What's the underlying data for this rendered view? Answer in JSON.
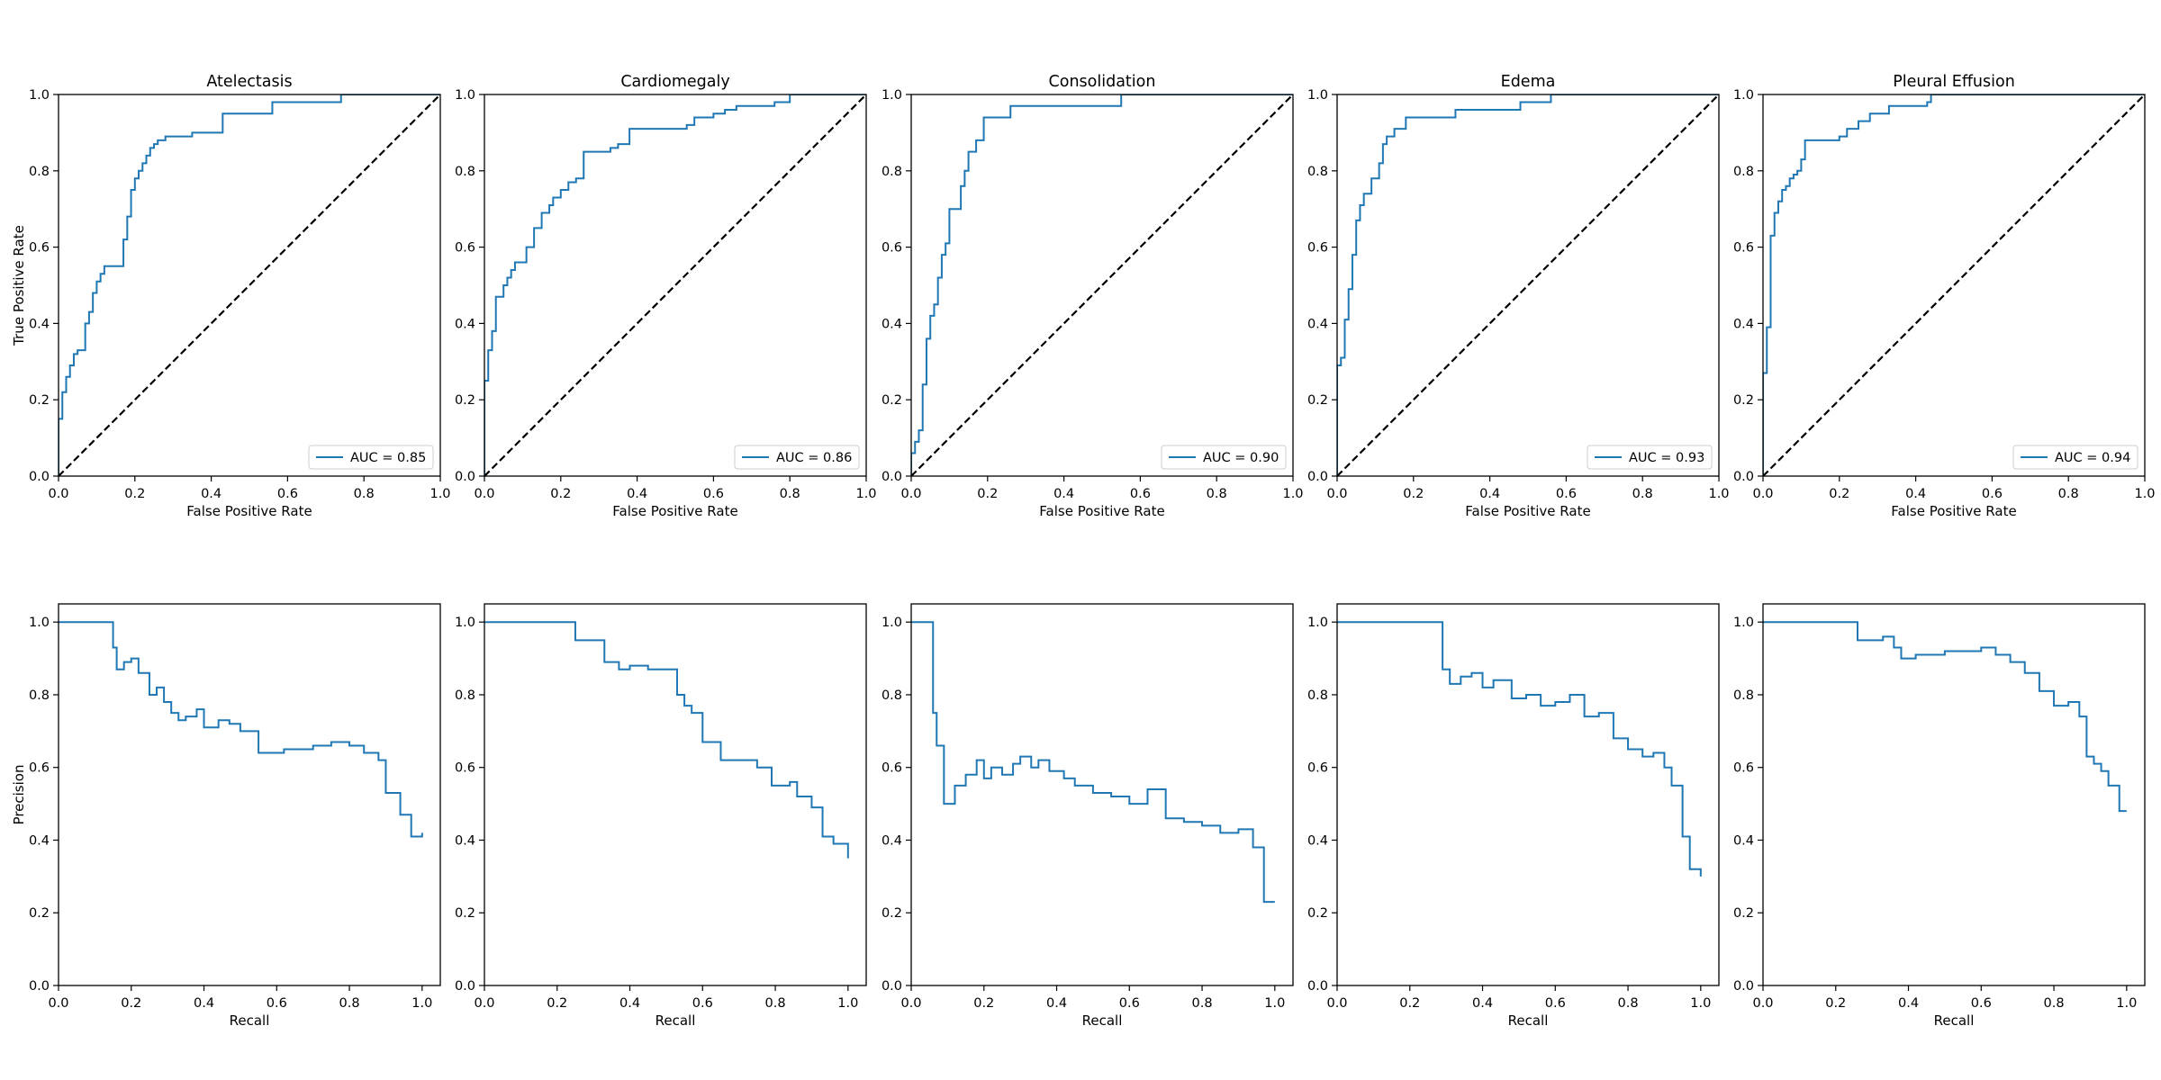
{
  "figure": {
    "line_color": "#1f77b4",
    "chance_color": "#000000"
  },
  "chart_data": [
    {
      "type": "line",
      "kind": "roc",
      "row": 0,
      "col": 0,
      "title": "Atelectasis",
      "xlabel": "False Positive Rate",
      "ylabel": "True Positive Rate",
      "xlim": [
        0,
        1
      ],
      "ylim": [
        0,
        1
      ],
      "xticks": [
        "0.0",
        "0.2",
        "0.4",
        "0.6",
        "0.8",
        "1.0"
      ],
      "yticks": [
        "0.0",
        "0.2",
        "0.4",
        "0.6",
        "0.8",
        "1.0"
      ],
      "series": [
        {
          "name": "AUC = 0.85",
          "step": "post",
          "x": [
            0.0,
            0.0,
            0.01,
            0.01,
            0.02,
            0.03,
            0.04,
            0.05,
            0.07,
            0.08,
            0.09,
            0.1,
            0.11,
            0.12,
            0.14,
            0.17,
            0.18,
            0.19,
            0.2,
            0.21,
            0.22,
            0.23,
            0.24,
            0.25,
            0.26,
            0.28,
            0.35,
            0.37,
            0.43,
            0.55,
            0.56,
            0.74,
            1.0
          ],
          "y": [
            0.0,
            0.15,
            0.17,
            0.22,
            0.26,
            0.29,
            0.32,
            0.33,
            0.4,
            0.43,
            0.48,
            0.51,
            0.53,
            0.55,
            0.55,
            0.62,
            0.68,
            0.75,
            0.78,
            0.8,
            0.82,
            0.84,
            0.86,
            0.87,
            0.88,
            0.89,
            0.9,
            0.9,
            0.95,
            0.95,
            0.98,
            1.0,
            1.0
          ]
        },
        {
          "name": "",
          "dashed": true,
          "x": [
            0,
            1
          ],
          "y": [
            0,
            1
          ]
        }
      ],
      "legend": {
        "entries": [
          "AUC = 0.85"
        ],
        "position": "lower right"
      }
    },
    {
      "type": "line",
      "kind": "roc",
      "row": 0,
      "col": 1,
      "title": "Cardiomegaly",
      "xlabel": "False Positive Rate",
      "ylabel": "",
      "xlim": [
        0,
        1
      ],
      "ylim": [
        0,
        1
      ],
      "xticks": [
        "0.0",
        "0.2",
        "0.4",
        "0.6",
        "0.8",
        "1.0"
      ],
      "yticks": [
        "0.0",
        "0.2",
        "0.4",
        "0.6",
        "0.8",
        "1.0"
      ],
      "series": [
        {
          "name": "AUC = 0.86",
          "step": "post",
          "x": [
            0.0,
            0.0,
            0.01,
            0.02,
            0.03,
            0.05,
            0.06,
            0.07,
            0.08,
            0.11,
            0.13,
            0.15,
            0.17,
            0.18,
            0.2,
            0.22,
            0.24,
            0.26,
            0.33,
            0.35,
            0.38,
            0.53,
            0.55,
            0.6,
            0.63,
            0.66,
            0.76,
            0.8,
            1.0
          ],
          "y": [
            0.0,
            0.25,
            0.33,
            0.38,
            0.47,
            0.5,
            0.52,
            0.54,
            0.56,
            0.6,
            0.65,
            0.69,
            0.71,
            0.73,
            0.75,
            0.77,
            0.78,
            0.85,
            0.86,
            0.87,
            0.91,
            0.92,
            0.94,
            0.95,
            0.96,
            0.97,
            0.98,
            1.0,
            1.0
          ]
        },
        {
          "name": "",
          "dashed": true,
          "x": [
            0,
            1
          ],
          "y": [
            0,
            1
          ]
        }
      ],
      "legend": {
        "entries": [
          "AUC = 0.86"
        ],
        "position": "lower right"
      }
    },
    {
      "type": "line",
      "kind": "roc",
      "row": 0,
      "col": 2,
      "title": "Consolidation",
      "xlabel": "False Positive Rate",
      "ylabel": "",
      "xlim": [
        0,
        1
      ],
      "ylim": [
        0,
        1
      ],
      "xticks": [
        "0.0",
        "0.2",
        "0.4",
        "0.6",
        "0.8",
        "1.0"
      ],
      "yticks": [
        "0.0",
        "0.2",
        "0.4",
        "0.6",
        "0.8",
        "1.0"
      ],
      "series": [
        {
          "name": "AUC = 0.90",
          "step": "post",
          "x": [
            0.0,
            0.0,
            0.01,
            0.02,
            0.03,
            0.04,
            0.05,
            0.06,
            0.07,
            0.08,
            0.09,
            0.1,
            0.13,
            0.14,
            0.15,
            0.17,
            0.19,
            0.2,
            0.26,
            0.55,
            1.0
          ],
          "y": [
            0.0,
            0.06,
            0.09,
            0.12,
            0.24,
            0.36,
            0.42,
            0.45,
            0.52,
            0.58,
            0.61,
            0.7,
            0.76,
            0.8,
            0.85,
            0.88,
            0.94,
            0.94,
            0.97,
            1.0,
            1.0
          ]
        },
        {
          "name": "",
          "dashed": true,
          "x": [
            0,
            1
          ],
          "y": [
            0,
            1
          ]
        }
      ],
      "legend": {
        "entries": [
          "AUC = 0.90"
        ],
        "position": "lower right"
      }
    },
    {
      "type": "line",
      "kind": "roc",
      "row": 0,
      "col": 3,
      "title": "Edema",
      "xlabel": "False Positive Rate",
      "ylabel": "",
      "xlim": [
        0,
        1
      ],
      "ylim": [
        0,
        1
      ],
      "xticks": [
        "0.0",
        "0.2",
        "0.4",
        "0.6",
        "0.8",
        "1.0"
      ],
      "yticks": [
        "0.0",
        "0.2",
        "0.4",
        "0.6",
        "0.8",
        "1.0"
      ],
      "series": [
        {
          "name": "AUC = 0.93",
          "step": "post",
          "x": [
            0.0,
            0.0,
            0.01,
            0.02,
            0.03,
            0.04,
            0.05,
            0.06,
            0.07,
            0.09,
            0.11,
            0.12,
            0.13,
            0.15,
            0.18,
            0.31,
            0.48,
            0.56,
            1.0
          ],
          "y": [
            0.0,
            0.29,
            0.31,
            0.41,
            0.49,
            0.58,
            0.67,
            0.71,
            0.74,
            0.78,
            0.82,
            0.87,
            0.89,
            0.91,
            0.94,
            0.96,
            0.98,
            1.0,
            1.0
          ]
        },
        {
          "name": "",
          "dashed": true,
          "x": [
            0,
            1
          ],
          "y": [
            0,
            1
          ]
        }
      ],
      "legend": {
        "entries": [
          "AUC = 0.93"
        ],
        "position": "lower right"
      }
    },
    {
      "type": "line",
      "kind": "roc",
      "row": 0,
      "col": 4,
      "title": "Pleural Effusion",
      "xlabel": "False Positive Rate",
      "ylabel": "",
      "xlim": [
        0,
        1
      ],
      "ylim": [
        0,
        1
      ],
      "xticks": [
        "0.0",
        "0.2",
        "0.4",
        "0.6",
        "0.8",
        "1.0"
      ],
      "yticks": [
        "0.0",
        "0.2",
        "0.4",
        "0.6",
        "0.8",
        "1.0"
      ],
      "series": [
        {
          "name": "AUC = 0.94",
          "step": "post",
          "x": [
            0.0,
            0.0,
            0.01,
            0.02,
            0.03,
            0.04,
            0.05,
            0.06,
            0.07,
            0.08,
            0.09,
            0.1,
            0.11,
            0.2,
            0.22,
            0.25,
            0.28,
            0.33,
            0.43,
            0.44,
            1.0
          ],
          "y": [
            0.0,
            0.27,
            0.39,
            0.63,
            0.69,
            0.72,
            0.75,
            0.76,
            0.78,
            0.79,
            0.8,
            0.83,
            0.88,
            0.89,
            0.91,
            0.93,
            0.95,
            0.97,
            0.98,
            1.0,
            1.0
          ]
        },
        {
          "name": "",
          "dashed": true,
          "x": [
            0,
            1
          ],
          "y": [
            0,
            1
          ]
        }
      ],
      "legend": {
        "entries": [
          "AUC = 0.94"
        ],
        "position": "lower right"
      }
    },
    {
      "type": "line",
      "kind": "pr",
      "row": 1,
      "col": 0,
      "title": "",
      "xlabel": "Recall",
      "ylabel": "Precision",
      "xlim": [
        0,
        1.05
      ],
      "ylim": [
        0,
        1.05
      ],
      "xticks": [
        "0.0",
        "0.2",
        "0.4",
        "0.6",
        "0.8",
        "1.0"
      ],
      "yticks": [
        "0.0",
        "0.2",
        "0.4",
        "0.6",
        "0.8",
        "1.0"
      ],
      "series": [
        {
          "name": "",
          "step": "post",
          "x": [
            0.0,
            0.15,
            0.16,
            0.18,
            0.2,
            0.22,
            0.25,
            0.27,
            0.29,
            0.31,
            0.33,
            0.35,
            0.38,
            0.4,
            0.44,
            0.47,
            0.5,
            0.55,
            0.58,
            0.62,
            0.66,
            0.7,
            0.75,
            0.8,
            0.84,
            0.88,
            0.9,
            0.94,
            0.97,
            1.0
          ],
          "y": [
            1.0,
            0.93,
            0.87,
            0.89,
            0.9,
            0.86,
            0.8,
            0.82,
            0.78,
            0.75,
            0.73,
            0.74,
            0.76,
            0.71,
            0.73,
            0.72,
            0.7,
            0.64,
            0.64,
            0.65,
            0.65,
            0.66,
            0.67,
            0.66,
            0.64,
            0.62,
            0.53,
            0.47,
            0.41,
            0.42
          ]
        }
      ]
    },
    {
      "type": "line",
      "kind": "pr",
      "row": 1,
      "col": 1,
      "title": "",
      "xlabel": "Recall",
      "ylabel": "",
      "xlim": [
        0,
        1.05
      ],
      "ylim": [
        0,
        1.05
      ],
      "xticks": [
        "0.0",
        "0.2",
        "0.4",
        "0.6",
        "0.8",
        "1.0"
      ],
      "yticks": [
        "0.0",
        "0.2",
        "0.4",
        "0.6",
        "0.8",
        "1.0"
      ],
      "series": [
        {
          "name": "",
          "step": "post",
          "x": [
            0.0,
            0.25,
            0.33,
            0.37,
            0.4,
            0.45,
            0.53,
            0.55,
            0.57,
            0.6,
            0.65,
            0.7,
            0.75,
            0.79,
            0.84,
            0.86,
            0.9,
            0.93,
            0.96,
            1.0
          ],
          "y": [
            1.0,
            0.95,
            0.89,
            0.87,
            0.88,
            0.87,
            0.8,
            0.77,
            0.75,
            0.67,
            0.62,
            0.62,
            0.6,
            0.55,
            0.56,
            0.52,
            0.49,
            0.41,
            0.39,
            0.35
          ]
        }
      ]
    },
    {
      "type": "line",
      "kind": "pr",
      "row": 1,
      "col": 2,
      "title": "",
      "xlabel": "Recall",
      "ylabel": "",
      "xlim": [
        0,
        1.05
      ],
      "ylim": [
        0,
        1.05
      ],
      "xticks": [
        "0.0",
        "0.2",
        "0.4",
        "0.6",
        "0.8",
        "1.0"
      ],
      "yticks": [
        "0.0",
        "0.2",
        "0.4",
        "0.6",
        "0.8",
        "1.0"
      ],
      "series": [
        {
          "name": "",
          "step": "post",
          "x": [
            0.0,
            0.06,
            0.07,
            0.09,
            0.12,
            0.15,
            0.18,
            0.2,
            0.22,
            0.25,
            0.28,
            0.3,
            0.33,
            0.35,
            0.38,
            0.42,
            0.45,
            0.5,
            0.55,
            0.6,
            0.65,
            0.7,
            0.75,
            0.8,
            0.85,
            0.9,
            0.94,
            0.97,
            1.0
          ],
          "y": [
            1.0,
            0.75,
            0.66,
            0.5,
            0.55,
            0.58,
            0.62,
            0.57,
            0.6,
            0.58,
            0.61,
            0.63,
            0.6,
            0.62,
            0.59,
            0.57,
            0.55,
            0.53,
            0.52,
            0.5,
            0.54,
            0.46,
            0.45,
            0.44,
            0.42,
            0.43,
            0.38,
            0.23,
            0.23
          ]
        }
      ]
    },
    {
      "type": "line",
      "kind": "pr",
      "row": 1,
      "col": 3,
      "title": "",
      "xlabel": "Recall",
      "ylabel": "",
      "xlim": [
        0,
        1.05
      ],
      "ylim": [
        0,
        1.05
      ],
      "xticks": [
        "0.0",
        "0.2",
        "0.4",
        "0.6",
        "0.8",
        "1.0"
      ],
      "yticks": [
        "0.0",
        "0.2",
        "0.4",
        "0.6",
        "0.8",
        "1.0"
      ],
      "series": [
        {
          "name": "",
          "step": "post",
          "x": [
            0.0,
            0.29,
            0.31,
            0.34,
            0.37,
            0.4,
            0.43,
            0.48,
            0.52,
            0.56,
            0.6,
            0.64,
            0.68,
            0.72,
            0.76,
            0.8,
            0.84,
            0.87,
            0.9,
            0.92,
            0.95,
            0.97,
            1.0
          ],
          "y": [
            1.0,
            0.87,
            0.83,
            0.85,
            0.86,
            0.82,
            0.84,
            0.79,
            0.8,
            0.77,
            0.78,
            0.8,
            0.74,
            0.75,
            0.68,
            0.65,
            0.63,
            0.64,
            0.6,
            0.55,
            0.41,
            0.32,
            0.3
          ]
        }
      ]
    },
    {
      "type": "line",
      "kind": "pr",
      "row": 1,
      "col": 4,
      "title": "",
      "xlabel": "Recall",
      "ylabel": "",
      "xlim": [
        0,
        1.05
      ],
      "ylim": [
        0,
        1.05
      ],
      "xticks": [
        "0.0",
        "0.2",
        "0.4",
        "0.6",
        "0.8",
        "1.0"
      ],
      "yticks": [
        "0.0",
        "0.2",
        "0.4",
        "0.6",
        "0.8",
        "1.0"
      ],
      "series": [
        {
          "name": "",
          "step": "post",
          "x": [
            0.0,
            0.26,
            0.33,
            0.36,
            0.38,
            0.42,
            0.5,
            0.6,
            0.64,
            0.68,
            0.72,
            0.76,
            0.8,
            0.84,
            0.87,
            0.89,
            0.91,
            0.93,
            0.95,
            0.98,
            1.0
          ],
          "y": [
            1.0,
            0.95,
            0.96,
            0.93,
            0.9,
            0.91,
            0.92,
            0.93,
            0.91,
            0.89,
            0.86,
            0.81,
            0.77,
            0.78,
            0.74,
            0.63,
            0.61,
            0.59,
            0.55,
            0.48,
            0.48
          ]
        }
      ]
    }
  ]
}
